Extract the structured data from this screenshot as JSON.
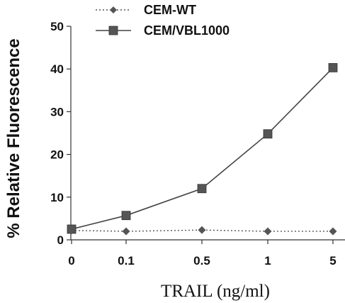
{
  "chart_data": {
    "type": "line",
    "categories": [
      "0",
      "0.1",
      "0.5",
      "1",
      "5"
    ],
    "xlabel": "TRAIL (ng/ml)",
    "ylabel": "% Relative Fluorescence",
    "ylim": [
      0,
      50
    ],
    "yticks": [
      "0",
      "10",
      "20",
      "30",
      "40",
      "50"
    ],
    "grid": false,
    "legend_position": "top-left",
    "series": [
      {
        "name": "CEM-WT",
        "values": [
          2.2,
          2.0,
          2.3,
          2.0,
          2.0
        ],
        "line_style": "dotted",
        "marker": "diamond",
        "color": "#555555"
      },
      {
        "name": "CEM/VBL1000",
        "values": [
          2.5,
          5.7,
          12.0,
          24.8,
          40.3
        ],
        "line_style": "solid",
        "marker": "square",
        "color": "#444444"
      }
    ]
  }
}
